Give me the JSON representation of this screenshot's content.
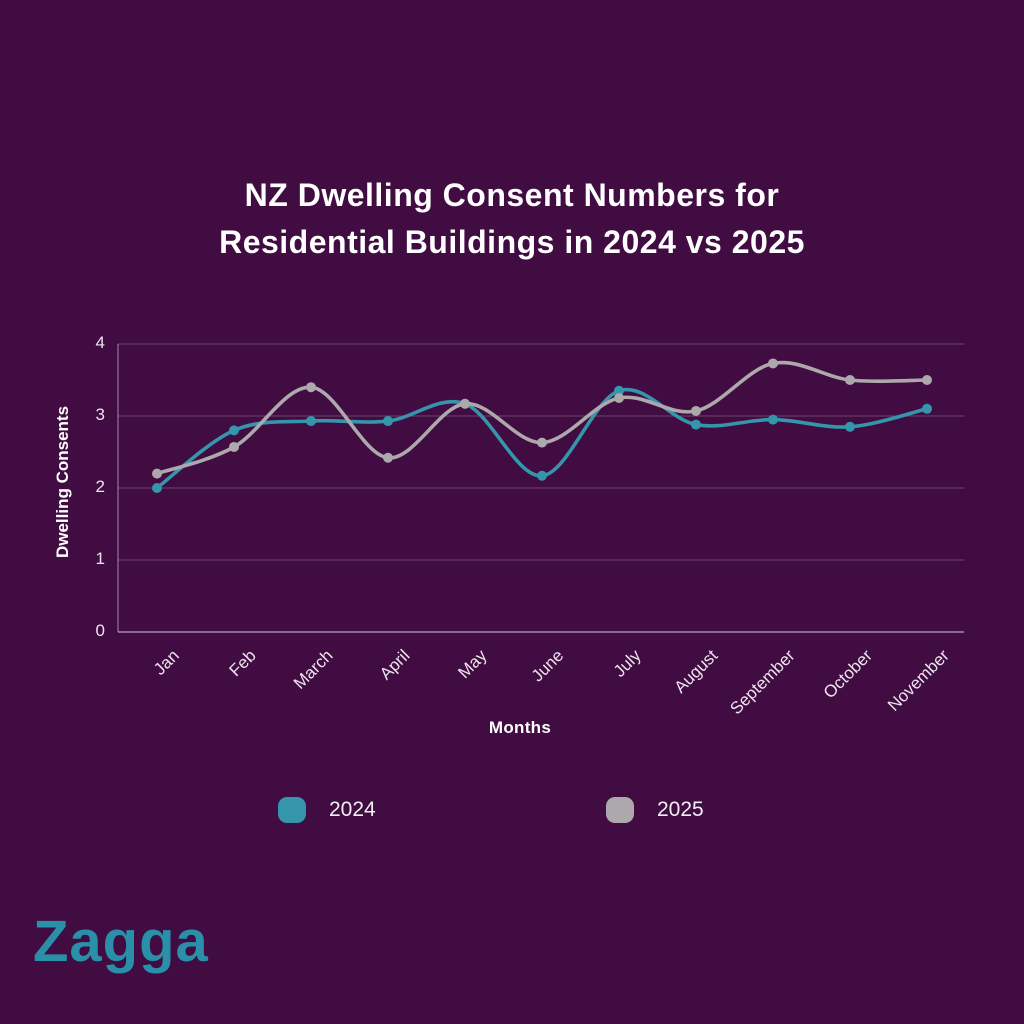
{
  "page": {
    "background_color": "#400C41",
    "title_line1": "NZ Dwelling Consent Numbers for",
    "title_line2": "Residential Buildings in 2024 vs 2025"
  },
  "chart_data": {
    "type": "line",
    "categories": [
      "Jan",
      "Feb",
      "March",
      "April",
      "May",
      "June",
      "July",
      "August",
      "September",
      "October",
      "November"
    ],
    "series": [
      {
        "name": "2024",
        "color": "#3596AB",
        "values": [
          2.0,
          2.8,
          2.93,
          2.93,
          3.17,
          2.17,
          3.35,
          2.88,
          2.95,
          2.85,
          3.1
        ]
      },
      {
        "name": "2025",
        "color": "#ADA8AC",
        "values": [
          2.2,
          2.57,
          3.4,
          2.42,
          3.17,
          2.63,
          3.25,
          3.07,
          3.73,
          3.5,
          3.5
        ]
      }
    ],
    "title": "NZ Dwelling Consent Numbers for Residential Buildings in 2024 vs 2025",
    "xlabel": "Months",
    "ylabel": "Dwelling Consents",
    "ylim": [
      0,
      4
    ],
    "yticks": [
      0,
      1,
      2,
      3,
      4
    ],
    "grid": true,
    "marker": "circle",
    "line_style": "smooth",
    "legend_position": "bottom",
    "grid_color": "rgba(235,220,238,0.28)",
    "axis_color": "rgba(235,220,238,0.6)",
    "tick_color": "#EDE4EE"
  },
  "footer": {
    "logo_text": "Zagga",
    "logo_color": "#2A8FA9"
  }
}
